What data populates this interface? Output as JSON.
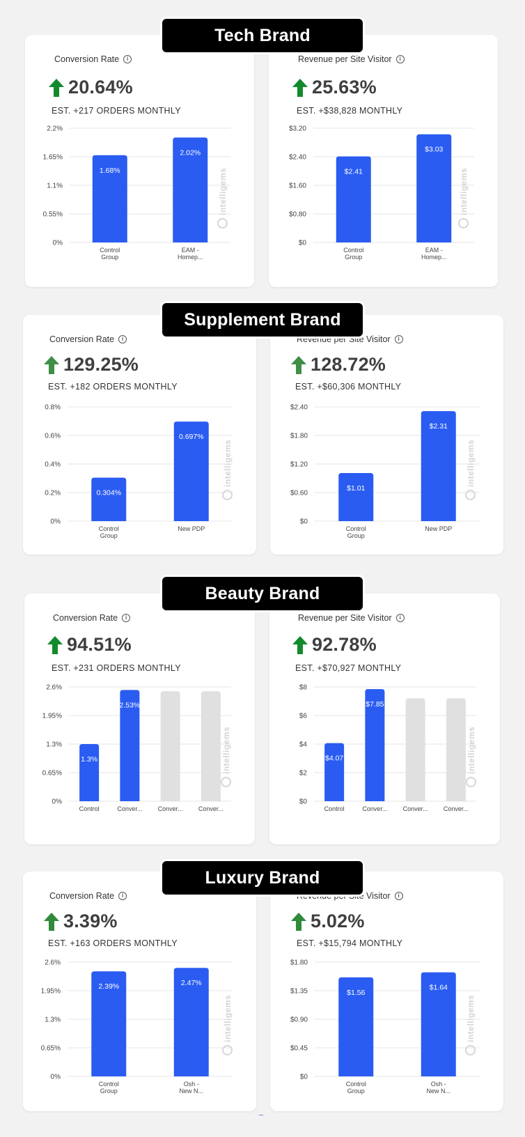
{
  "colors": {
    "bar": "#2a5cf2",
    "bar_muted": "#e0e0e0",
    "arrow": "#138a2c",
    "grid": "#e6e6e6"
  },
  "sections": [
    {
      "brand": "Tech Brand",
      "cards": [
        {
          "title": "Conversion Rate",
          "metric": "20.64%",
          "est": "EST. +217 ORDERS MONTHLY",
          "chart_data": {
            "type": "bar",
            "categories": [
              [
                "Control",
                "Group"
              ],
              [
                "EAM -",
                "Homep..."
              ]
            ],
            "values": [
              1.68,
              2.02
            ],
            "data_labels": [
              "1.68%",
              "2.02%"
            ],
            "yticks": [
              "0%",
              "0.55%",
              "1.1%",
              "1.65%",
              "2.2%"
            ],
            "ylim": [
              0,
              2.2
            ],
            "muted": [
              false,
              false
            ]
          }
        },
        {
          "title": "Revenue per Site Visitor",
          "metric": "25.63%",
          "est": "EST. +$38,828 MONTHLY",
          "chart_data": {
            "type": "bar",
            "categories": [
              [
                "Control",
                "Group"
              ],
              [
                "EAM -",
                "Homep..."
              ]
            ],
            "values": [
              2.41,
              3.03
            ],
            "data_labels": [
              "$2.41",
              "$3.03"
            ],
            "yticks": [
              "$0",
              "$0.80",
              "$1.60",
              "$2.40",
              "$3.20"
            ],
            "ylim": [
              0,
              3.2
            ],
            "muted": [
              false,
              false
            ]
          }
        }
      ]
    },
    {
      "brand": "Supplement Brand",
      "cards": [
        {
          "title": "Conversion Rate",
          "metric": "129.25%",
          "est": "EST. +182 ORDERS MONTHLY",
          "chart_data": {
            "type": "bar",
            "categories": [
              [
                "Control",
                "Group"
              ],
              [
                "New PDP"
              ]
            ],
            "values": [
              0.304,
              0.697
            ],
            "data_labels": [
              "0.304%",
              "0.697%"
            ],
            "yticks": [
              "0%",
              "0.2%",
              "0.4%",
              "0.6%",
              "0.8%"
            ],
            "ylim": [
              0,
              0.8
            ],
            "muted": [
              false,
              false
            ]
          }
        },
        {
          "title": "Revenue per Site Visitor",
          "metric": "128.72%",
          "est": "EST. +$60,306 MONTHLY",
          "chart_data": {
            "type": "bar",
            "categories": [
              [
                "Control",
                "Group"
              ],
              [
                "New PDP"
              ]
            ],
            "values": [
              1.01,
              2.31
            ],
            "data_labels": [
              "$1.01",
              "$2.31"
            ],
            "yticks": [
              "$0",
              "$0.60",
              "$1.20",
              "$1.80",
              "$2.40"
            ],
            "ylim": [
              0,
              2.4
            ],
            "muted": [
              false,
              false
            ]
          }
        }
      ]
    },
    {
      "brand": "Beauty Brand",
      "cards": [
        {
          "title": "Conversion Rate",
          "metric": "94.51%",
          "est": "EST. +231 ORDERS MONTHLY",
          "chart_data": {
            "type": "bar",
            "categories": [
              [
                "Control"
              ],
              [
                "Conver..."
              ],
              [
                "Conver..."
              ],
              [
                "Conver..."
              ]
            ],
            "values": [
              1.3,
              2.53,
              2.5,
              2.5
            ],
            "data_labels": [
              "1.3%",
              "2.53%",
              "",
              ""
            ],
            "yticks": [
              "0%",
              "0.65%",
              "1.3%",
              "1.95%",
              "2.6%"
            ],
            "ylim": [
              0,
              2.6
            ],
            "muted": [
              false,
              false,
              true,
              true
            ]
          }
        },
        {
          "title": "Revenue per Site Visitor",
          "metric": "92.78%",
          "est": "EST. +$70,927 MONTHLY",
          "chart_data": {
            "type": "bar",
            "categories": [
              [
                "Control"
              ],
              [
                "Conver..."
              ],
              [
                "Conver..."
              ],
              [
                "Conver..."
              ]
            ],
            "values": [
              4.07,
              7.85,
              7.2,
              7.2
            ],
            "data_labels": [
              "$4.07",
              "$7.85",
              "",
              ""
            ],
            "yticks": [
              "$0",
              "$2",
              "$4",
              "$6",
              "$8"
            ],
            "ylim": [
              0,
              8
            ],
            "muted": [
              false,
              false,
              true,
              true
            ]
          }
        }
      ]
    },
    {
      "brand": "Luxury Brand",
      "cards": [
        {
          "title": "Conversion Rate",
          "metric": "3.39%",
          "est": "EST. +163 ORDERS MONTHLY",
          "chart_data": {
            "type": "bar",
            "categories": [
              [
                "Control",
                "Group"
              ],
              [
                "Osh -",
                "New N..."
              ]
            ],
            "values": [
              2.39,
              2.47
            ],
            "data_labels": [
              "2.39%",
              "2.47%"
            ],
            "yticks": [
              "0%",
              "0.65%",
              "1.3%",
              "1.95%",
              "2.6%"
            ],
            "ylim": [
              0,
              2.6
            ],
            "muted": [
              false,
              false
            ]
          }
        },
        {
          "title": "Revenue per Site Visitor",
          "metric": "5.02%",
          "est": "EST. +$15,794 MONTHLY",
          "chart_data": {
            "type": "bar",
            "categories": [
              [
                "Control",
                "Group"
              ],
              [
                "Osh -",
                "New N..."
              ]
            ],
            "values": [
              1.56,
              1.64
            ],
            "data_labels": [
              "$1.56",
              "$1.64"
            ],
            "yticks": [
              "$0",
              "$0.45",
              "$0.90",
              "$1.35",
              "$1.80"
            ],
            "ylim": [
              0,
              1.8
            ],
            "muted": [
              false,
              false
            ]
          }
        }
      ]
    }
  ],
  "watermark": "intelligems"
}
